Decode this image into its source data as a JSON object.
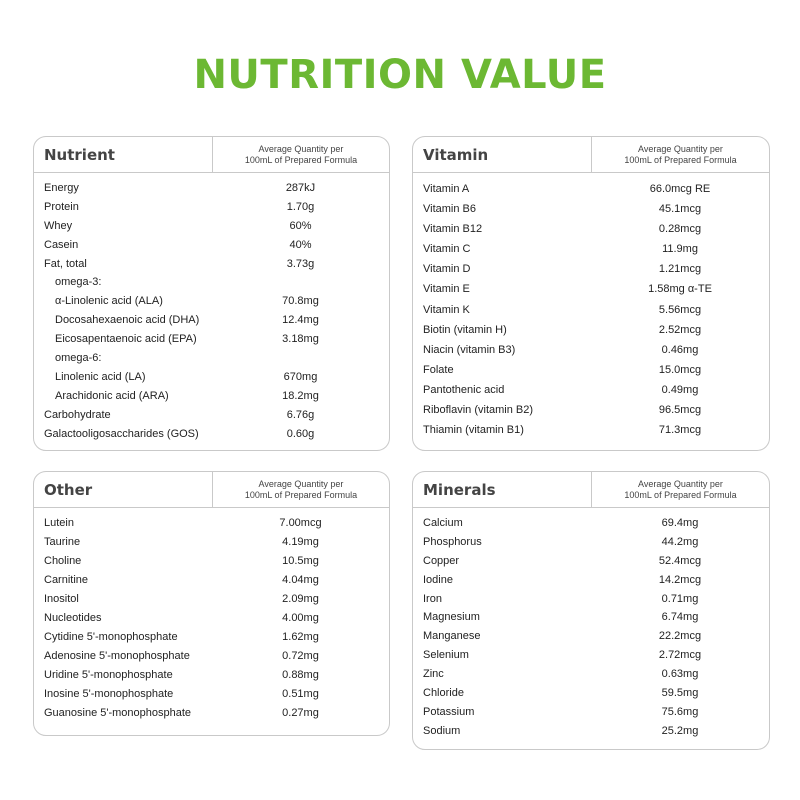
{
  "title": "NUTRITION VALUE",
  "column_header": [
    "Average Quantity per",
    "100mL of Prepared Formula"
  ],
  "panels": [
    {
      "name": "Nutrient",
      "rows": [
        {
          "label": "Energy",
          "value": "287kJ"
        },
        {
          "label": "Protein",
          "value": "1.70g"
        },
        {
          "label": "Whey",
          "value": "60%"
        },
        {
          "label": "Casein",
          "value": "40%"
        },
        {
          "label": "Fat, total",
          "value": "3.73g"
        },
        {
          "label": "omega-3:",
          "value": "",
          "indent": true
        },
        {
          "label": "α-Linolenic acid (ALA)",
          "value": "70.8mg",
          "indent": true
        },
        {
          "label": "Docosahexaenoic acid (DHA)",
          "value": "12.4mg",
          "indent": true
        },
        {
          "label": "Eicosapentaenoic acid (EPA)",
          "value": "3.18mg",
          "indent": true
        },
        {
          "label": "omega-6:",
          "value": "",
          "indent": true
        },
        {
          "label": "Linolenic acid (LA)",
          "value": "670mg",
          "indent": true
        },
        {
          "label": "Arachidonic acid (ARA)",
          "value": "18.2mg",
          "indent": true
        },
        {
          "label": "Carbohydrate",
          "value": "6.76g"
        },
        {
          "label": "Galactooligosaccharides (GOS)",
          "value": "0.60g"
        }
      ]
    },
    {
      "name": "Vitamin",
      "rows": [
        {
          "label": "Vitamin A",
          "value": "66.0mcg RE"
        },
        {
          "label": "Vitamin B6",
          "value": "45.1mcg"
        },
        {
          "label": "Vitamin B12",
          "value": "0.28mcg"
        },
        {
          "label": "Vitamin C",
          "value": "11.9mg"
        },
        {
          "label": "Vitamin D",
          "value": "1.21mcg"
        },
        {
          "label": "Vitamin E",
          "value": "1.58mg α-TE"
        },
        {
          "label": "Vitamin K",
          "value": "5.56mcg"
        },
        {
          "label": "Biotin (vitamin H)",
          "value": "2.52mcg"
        },
        {
          "label": "Niacin (vitamin B3)",
          "value": "0.46mg"
        },
        {
          "label": "Folate",
          "value": "15.0mcg"
        },
        {
          "label": "Pantothenic acid",
          "value": "0.49mg"
        },
        {
          "label": "Riboflavin (vitamin B2)",
          "value": "96.5mcg"
        },
        {
          "label": "Thiamin (vitamin B1)",
          "value": "71.3mcg"
        }
      ]
    },
    {
      "name": "Other",
      "rows": [
        {
          "label": "Lutein",
          "value": "7.00mcg"
        },
        {
          "label": "Taurine",
          "value": "4.19mg"
        },
        {
          "label": "Choline",
          "value": "10.5mg"
        },
        {
          "label": "Carnitine",
          "value": "4.04mg"
        },
        {
          "label": "Inositol",
          "value": "2.09mg"
        },
        {
          "label": "Nucleotides",
          "value": "4.00mg"
        },
        {
          "label": "Cytidine 5'-monophosphate",
          "value": "1.62mg"
        },
        {
          "label": "Adenosine 5'-monophosphate",
          "value": "0.72mg"
        },
        {
          "label": "Uridine 5'-monophosphate",
          "value": "0.88mg"
        },
        {
          "label": "Inosine 5'-monophosphate",
          "value": "0.51mg"
        },
        {
          "label": "Guanosine 5'-monophosphate",
          "value": "0.27mg"
        }
      ]
    },
    {
      "name": "Minerals",
      "rows": [
        {
          "label": "Calcium",
          "value": "69.4mg"
        },
        {
          "label": "Phosphorus",
          "value": "44.2mg"
        },
        {
          "label": "Copper",
          "value": "52.4mcg"
        },
        {
          "label": "Iodine",
          "value": "14.2mcg"
        },
        {
          "label": "Iron",
          "value": "0.71mg"
        },
        {
          "label": "Magnesium",
          "value": "6.74mg"
        },
        {
          "label": "Manganese",
          "value": "22.2mcg"
        },
        {
          "label": "Selenium",
          "value": "2.72mcg"
        },
        {
          "label": "Zinc",
          "value": "0.63mg"
        },
        {
          "label": "Chloride",
          "value": "59.5mg"
        },
        {
          "label": "Potassium",
          "value": "75.6mg"
        },
        {
          "label": "Sodium",
          "value": "25.2mg"
        }
      ]
    }
  ]
}
